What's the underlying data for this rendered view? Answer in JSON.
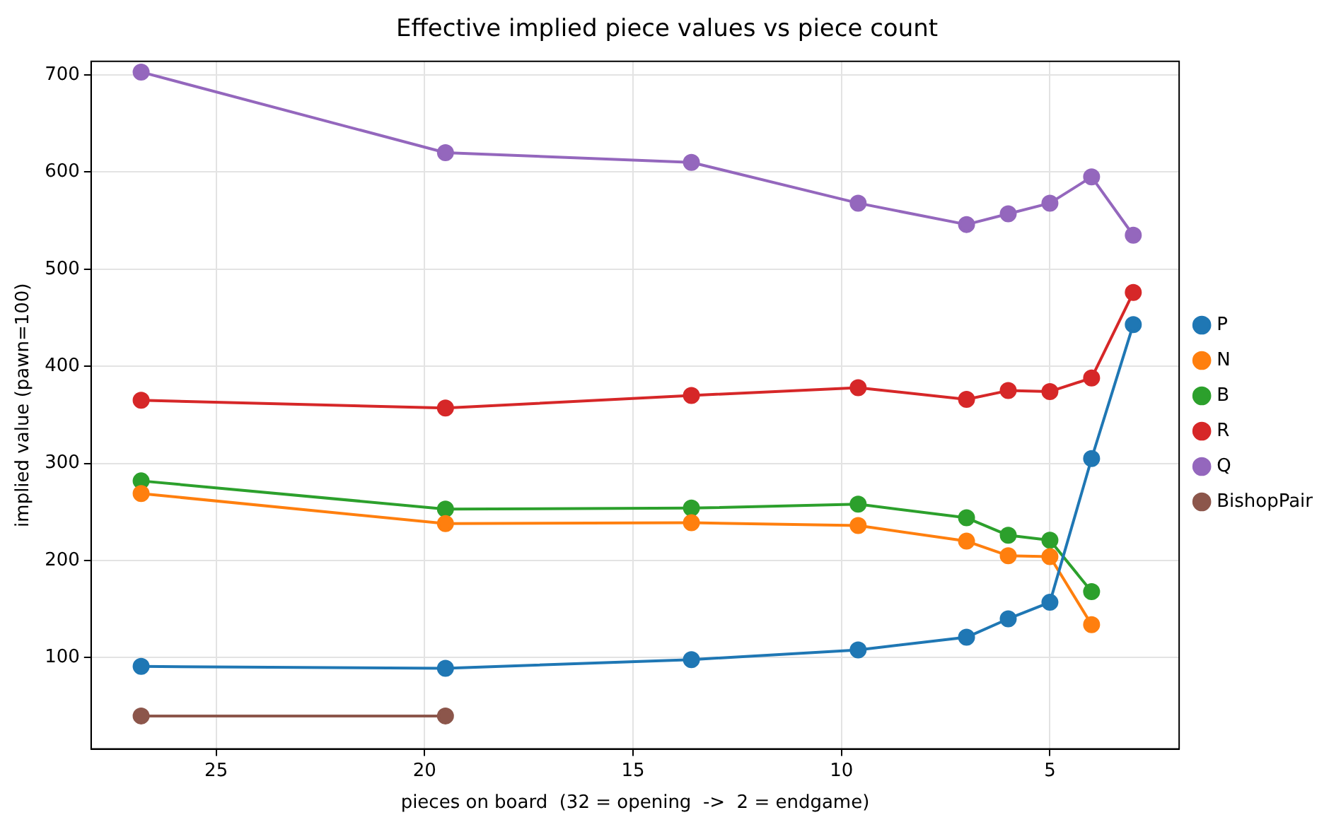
{
  "chart_data": {
    "type": "line",
    "title": "Effective implied piece values vs piece count",
    "xlabel": "pieces on board  (32 = opening  ->  2 = endgame)",
    "ylabel": "implied value (pawn=100)",
    "x": [
      26.8,
      19.5,
      13.6,
      9.6,
      7,
      6,
      5,
      4,
      3
    ],
    "xlim": [
      28,
      1.9
    ],
    "xticks": [
      25,
      20,
      15,
      10,
      5
    ],
    "ylim": [
      6,
      714
    ],
    "yticks": [
      100,
      200,
      300,
      400,
      500,
      600,
      700
    ],
    "grid": true,
    "legend": "right",
    "marker": "circle",
    "line_style": "solid",
    "series": [
      {
        "name": "P",
        "color": "#1f77b4",
        "values": [
          91,
          89,
          98,
          108,
          121,
          140,
          157,
          305,
          443
        ]
      },
      {
        "name": "N",
        "color": "#ff7f0e",
        "values": [
          269,
          238,
          239,
          236,
          220,
          205,
          204,
          134,
          null
        ]
      },
      {
        "name": "B",
        "color": "#2ca02c",
        "values": [
          282,
          253,
          254,
          258,
          244,
          226,
          221,
          168,
          null
        ]
      },
      {
        "name": "R",
        "color": "#d62728",
        "values": [
          365,
          357,
          370,
          378,
          366,
          375,
          374,
          388,
          476
        ]
      },
      {
        "name": "Q",
        "color": "#9467bd",
        "values": [
          703,
          620,
          610,
          568,
          546,
          557,
          568,
          595,
          535
        ]
      },
      {
        "name": "BishopPair",
        "color": "#8c564b",
        "x": [
          26.8,
          19.5
        ],
        "values": [
          40,
          40
        ]
      }
    ]
  }
}
